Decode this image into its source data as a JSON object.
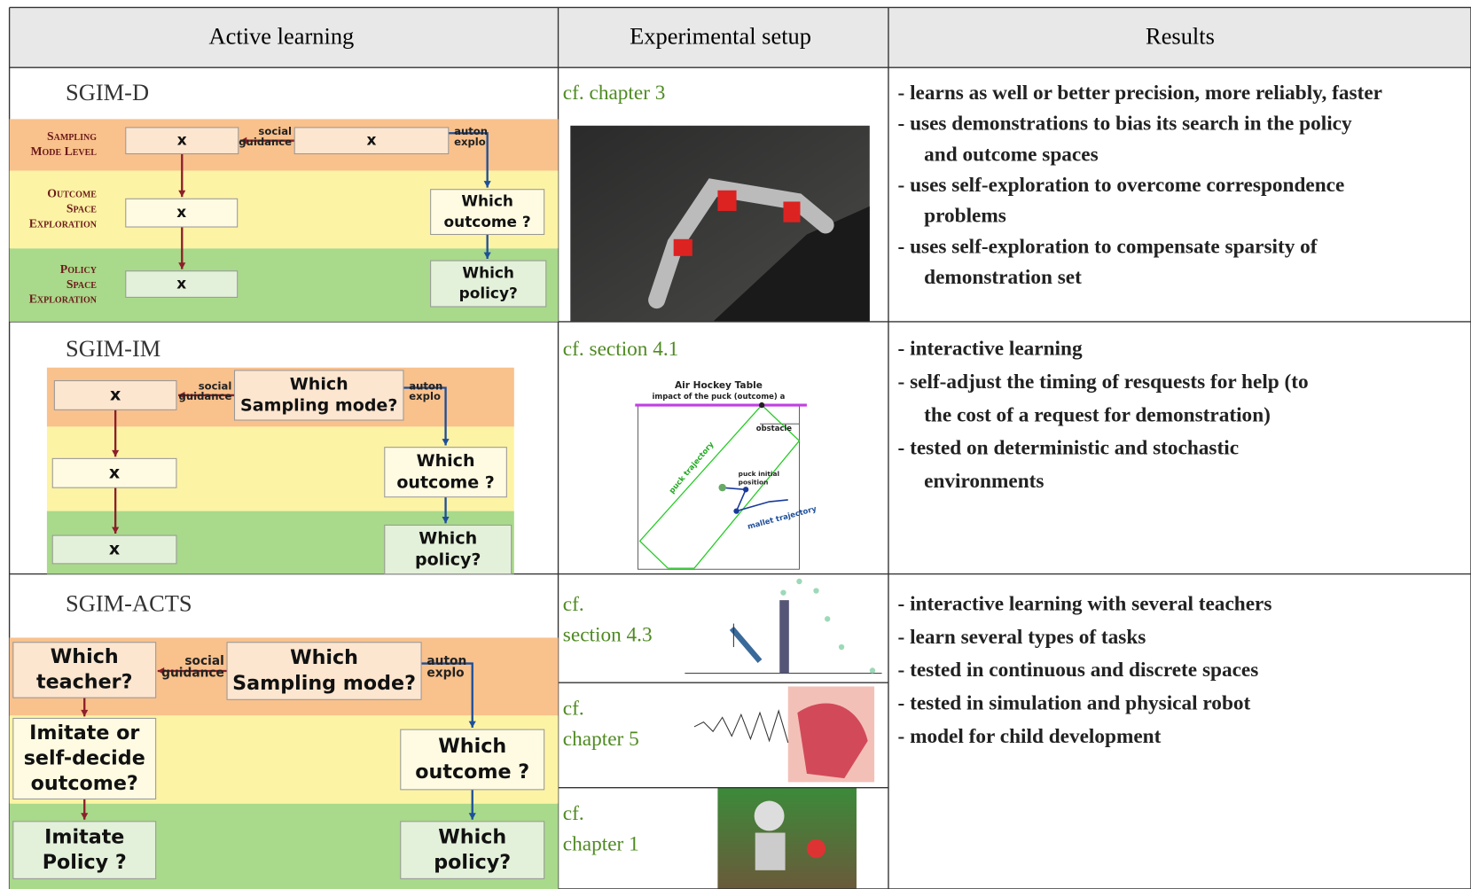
{
  "header": [
    "Active learning",
    "Experimental setup",
    "Results"
  ],
  "rows": [
    {
      "method": "SGIM-D",
      "diagram": {
        "levels": [
          [
            "Sampling",
            "Mode Level"
          ],
          [
            "Outcome",
            "Space",
            "Exploration"
          ],
          [
            "Policy",
            "Space",
            "Exploration"
          ]
        ],
        "social": [
          "social",
          "guidance"
        ],
        "auton": [
          "auton",
          "explo"
        ],
        "boxes": [
          [
            "x"
          ],
          [
            "x"
          ],
          [
            "x"
          ],
          [
            "x"
          ],
          [
            "Which",
            "outcome ?"
          ],
          [
            "Which",
            "policy?"
          ]
        ]
      },
      "setup": [
        [
          "cf. chapter 3"
        ]
      ],
      "results": [
        [
          "- learns as well or better ",
          {
            "text": "precision",
            "bold": true
          },
          ", more reliably, ",
          {
            "text": "faster",
            "bold": true
          }
        ],
        [
          "- uses demonstrations to ",
          {
            "text": "bias its search in the policy",
            "bold": true
          }
        ],
        [
          {
            "text": "and outcome",
            "bold": true
          },
          " spaces"
        ],
        [
          "- uses self-exploration to ",
          {
            "text": "overcome correspondence",
            "bold": true
          }
        ],
        [
          "problems"
        ],
        [
          "- uses self-exploration to ",
          {
            "text": "compensate sparsity of",
            "bold": true
          }
        ],
        [
          {
            "text": "demonstration set",
            "bold": true
          }
        ]
      ]
    },
    {
      "method": "SGIM-IM",
      "diagram": {
        "social": [
          "social",
          "guidance"
        ],
        "auton": [
          "auton",
          "explo"
        ],
        "boxes": [
          [
            "x"
          ],
          [
            "Which",
            "Sampling mode?"
          ],
          [
            "x"
          ],
          [
            "x"
          ],
          [
            "Which",
            "outcome ?"
          ],
          [
            "Which",
            "policy?"
          ]
        ]
      },
      "setup": [
        [
          "cf. section 4.1"
        ]
      ],
      "figure": {
        "title": "Air Hockey Table",
        "impact": "impact of the puck (outcome) a",
        "obstacle": "obstacle",
        "puck": "puck trajectory",
        "initial": [
          "puck initial",
          "position"
        ],
        "mallet": "mallet trajectory"
      },
      "results": [
        [
          "- ",
          {
            "text": "interactive learning",
            "bold": true
          }
        ],
        [
          "- self-adjust the timing of resquests for help (to"
        ],
        [
          "the cost of a request for demonstration)"
        ],
        [
          "- tested on ",
          {
            "text": "deterministic and stochastic",
            "bold": true
          }
        ],
        [
          "environments"
        ]
      ]
    },
    {
      "method": "SGIM-ACTS",
      "diagram": {
        "social": [
          "social",
          "guidance"
        ],
        "auton": [
          "auton",
          "explo"
        ],
        "boxes": [
          [
            "Which",
            "teacher?"
          ],
          [
            "Which",
            "Sampling mode?"
          ],
          [
            "Imitate or",
            "self-decide",
            "outcome?"
          ],
          [
            "Imitate",
            "Policy ?"
          ],
          [
            "Which",
            "outcome ?"
          ],
          [
            "Which",
            "policy?"
          ]
        ]
      },
      "setup": [
        [
          "cf.",
          "section 4.3"
        ],
        [
          "cf.",
          "chapter 5"
        ],
        [
          "cf.",
          "chapter 1"
        ]
      ],
      "results": [
        [
          "- interactive learning with ",
          {
            "text": "several teachers",
            "bold": true
          }
        ],
        [
          "- learn ",
          {
            "text": "several types of tasks",
            "bold": true
          }
        ],
        [
          "- tested in ",
          {
            "text": "continuous and discrete",
            "bold": true
          },
          " spaces"
        ],
        [
          "- tested in simulation and physical robot"
        ],
        [
          "- model for child development"
        ]
      ]
    }
  ]
}
